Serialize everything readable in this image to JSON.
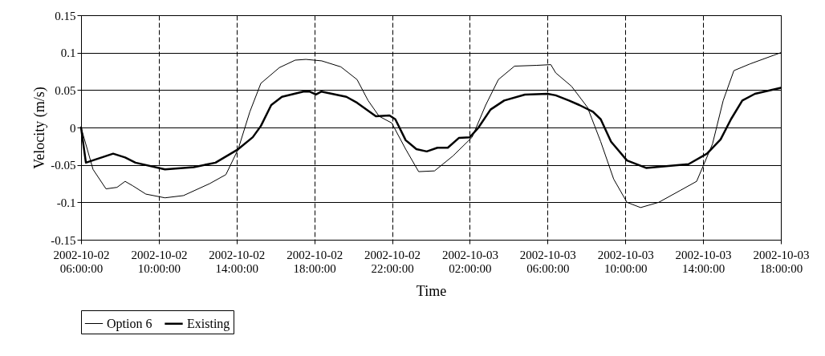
{
  "chart_data": {
    "type": "line",
    "xlabel": "Time",
    "ylabel": "Velocity (m/s)",
    "xlim": [
      "2002-10-02T06:00",
      "2002-10-03T18:00"
    ],
    "xticks": [
      {
        "value": "2002-10-02T06:00",
        "label": "2002-10-02 06:00:00"
      },
      {
        "value": "2002-10-02T10:00",
        "label": "2002-10-02 10:00:00"
      },
      {
        "value": "2002-10-02T14:00",
        "label": "2002-10-02 14:00:00"
      },
      {
        "value": "2002-10-02T18:00",
        "label": "2002-10-02 18:00:00"
      },
      {
        "value": "2002-10-02T22:00",
        "label": "2002-10-02 22:00:00"
      },
      {
        "value": "2002-10-03T02:00",
        "label": "2002-10-03 02:00:00"
      },
      {
        "value": "2002-10-03T06:00",
        "label": "2002-10-03 06:00:00"
      },
      {
        "value": "2002-10-03T10:00",
        "label": "2002-10-03 10:00:00"
      },
      {
        "value": "2002-10-03T14:00",
        "label": "2002-10-03 14:00:00"
      },
      {
        "value": "2002-10-03T18:00",
        "label": "2002-10-03 18:00:00"
      }
    ],
    "ylim": [
      -0.15,
      0.15
    ],
    "yticks": [
      -0.15,
      -0.1,
      -0.05,
      0,
      0.05,
      0.1,
      0.15
    ],
    "grid": true,
    "legend": "bottom left",
    "marker": "none",
    "line_style": "solid",
    "series": [
      {
        "name": "Option 6",
        "color": "#000000",
        "x": [
          "2002-10-02T06:00",
          "2002-10-02T06:37",
          "2002-10-02T07:17",
          "2002-10-02T07:51",
          "2002-10-02T08:16",
          "2002-10-02T08:40",
          "2002-10-02T09:20",
          "2002-10-02T10:19",
          "2002-10-02T11:16",
          "2002-10-02T12:37",
          "2002-10-02T13:27",
          "2002-10-02T14:05",
          "2002-10-02T14:41",
          "2002-10-02T15:15",
          "2002-10-02T16:12",
          "2002-10-02T17:01",
          "2002-10-02T17:34",
          "2002-10-02T18:23",
          "2002-10-02T19:22",
          "2002-10-02T20:12",
          "2002-10-02T20:46",
          "2002-10-02T21:20",
          "2002-10-02T21:59",
          "2002-10-02T22:42",
          "2002-10-02T23:22",
          "2002-10-03T00:11",
          "2002-10-03T01:08",
          "2002-10-03T02:07",
          "2002-10-03T02:49",
          "2002-10-03T03:28",
          "2002-10-03T04:18",
          "2002-10-03T05:25",
          "2002-10-03T06:10",
          "2002-10-03T06:25",
          "2002-10-03T07:14",
          "2002-10-03T08:03",
          "2002-10-03T08:44",
          "2002-10-03T09:24",
          "2002-10-03T10:05",
          "2002-10-03T10:47",
          "2002-10-03T11:43",
          "2002-10-03T12:50",
          "2002-10-03T13:40",
          "2002-10-03T14:29",
          "2002-10-03T15:02",
          "2002-10-03T15:35",
          "2002-10-03T16:25",
          "2002-10-03T18:00"
        ],
        "values": [
          0,
          -0.056,
          -0.082,
          -0.08,
          -0.072,
          -0.078,
          -0.089,
          -0.094,
          -0.091,
          -0.075,
          -0.063,
          -0.029,
          0.021,
          0.059,
          0.08,
          0.09,
          0.091,
          0.089,
          0.081,
          0.064,
          0.036,
          0.015,
          0.006,
          -0.029,
          -0.059,
          -0.058,
          -0.038,
          -0.013,
          0.03,
          0.064,
          0.082,
          0.083,
          0.084,
          0.073,
          0.055,
          0.027,
          -0.019,
          -0.069,
          -0.1,
          -0.107,
          -0.1,
          -0.084,
          -0.072,
          -0.022,
          0.036,
          0.076,
          0.085,
          0.1
        ]
      },
      {
        "name": "Existing",
        "color": "#000000",
        "x": [
          "2002-10-02T06:00",
          "2002-10-02T06:15",
          "2002-10-02T07:39",
          "2002-10-02T08:16",
          "2002-10-02T08:48",
          "2002-10-02T10:19",
          "2002-10-02T11:48",
          "2002-10-02T12:55",
          "2002-10-02T14:05",
          "2002-10-02T14:50",
          "2002-10-02T15:15",
          "2002-10-02T15:47",
          "2002-10-02T16:20",
          "2002-10-02T17:26",
          "2002-10-02T17:45",
          "2002-10-02T18:05",
          "2002-10-02T18:22",
          "2002-10-02T19:39",
          "2002-10-02T20:12",
          "2002-10-02T21:10",
          "2002-10-02T21:52",
          "2002-10-02T22:10",
          "2002-10-02T22:42",
          "2002-10-02T23:15",
          "2002-10-02T23:47",
          "2002-10-03T00:20",
          "2002-10-03T00:52",
          "2002-10-03T01:26",
          "2002-10-03T02:00",
          "2002-10-03T02:25",
          "2002-10-03T03:04",
          "2002-10-03T03:46",
          "2002-10-03T04:50",
          "2002-10-03T06:00",
          "2002-10-03T06:25",
          "2002-10-03T07:06",
          "2002-10-03T07:38",
          "2002-10-03T08:20",
          "2002-10-03T08:44",
          "2002-10-03T09:16",
          "2002-10-03T10:05",
          "2002-10-03T11:04",
          "2002-10-03T13:15",
          "2002-10-03T14:12",
          "2002-10-03T14:54",
          "2002-10-03T15:26",
          "2002-10-03T16:01",
          "2002-10-03T16:40",
          "2002-10-03T18:00"
        ],
        "values": [
          0,
          -0.047,
          -0.035,
          -0.04,
          -0.047,
          -0.056,
          -0.053,
          -0.047,
          -0.029,
          -0.013,
          0.002,
          0.03,
          0.041,
          0.048,
          0.048,
          0.044,
          0.048,
          0.041,
          0.033,
          0.015,
          0.016,
          0.011,
          -0.017,
          -0.029,
          -0.032,
          -0.027,
          -0.027,
          -0.014,
          -0.013,
          -0.001,
          0.024,
          0.036,
          0.044,
          0.045,
          0.043,
          0.036,
          0.03,
          0.021,
          0.011,
          -0.019,
          -0.044,
          -0.054,
          -0.049,
          -0.035,
          -0.016,
          0.011,
          0.036,
          0.045,
          0.053
        ]
      }
    ]
  }
}
